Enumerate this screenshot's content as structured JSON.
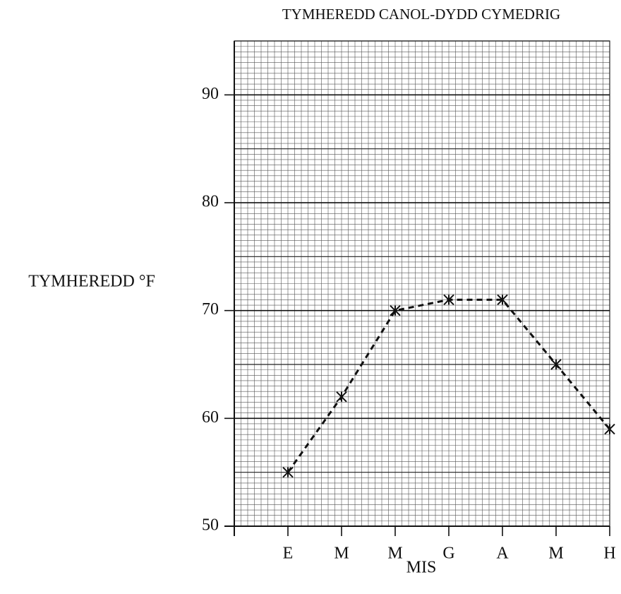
{
  "chart_data": {
    "type": "line",
    "title": "TYMHEREDD CANOL-DYDD CYMEDRIG",
    "x_label": "MIS",
    "y_label": "TYMHEREDD °F",
    "categories": [
      "E",
      "M",
      "M",
      "G",
      "A",
      "M",
      "H"
    ],
    "series": [
      {
        "name": "TYMHEREDD",
        "color": "#111111",
        "values": [
          55,
          62,
          70,
          71,
          71,
          65,
          59
        ]
      }
    ],
    "ylim": [
      50,
      95
    ],
    "yticks": [
      50,
      60,
      70,
      80,
      90
    ],
    "grid": true
  }
}
